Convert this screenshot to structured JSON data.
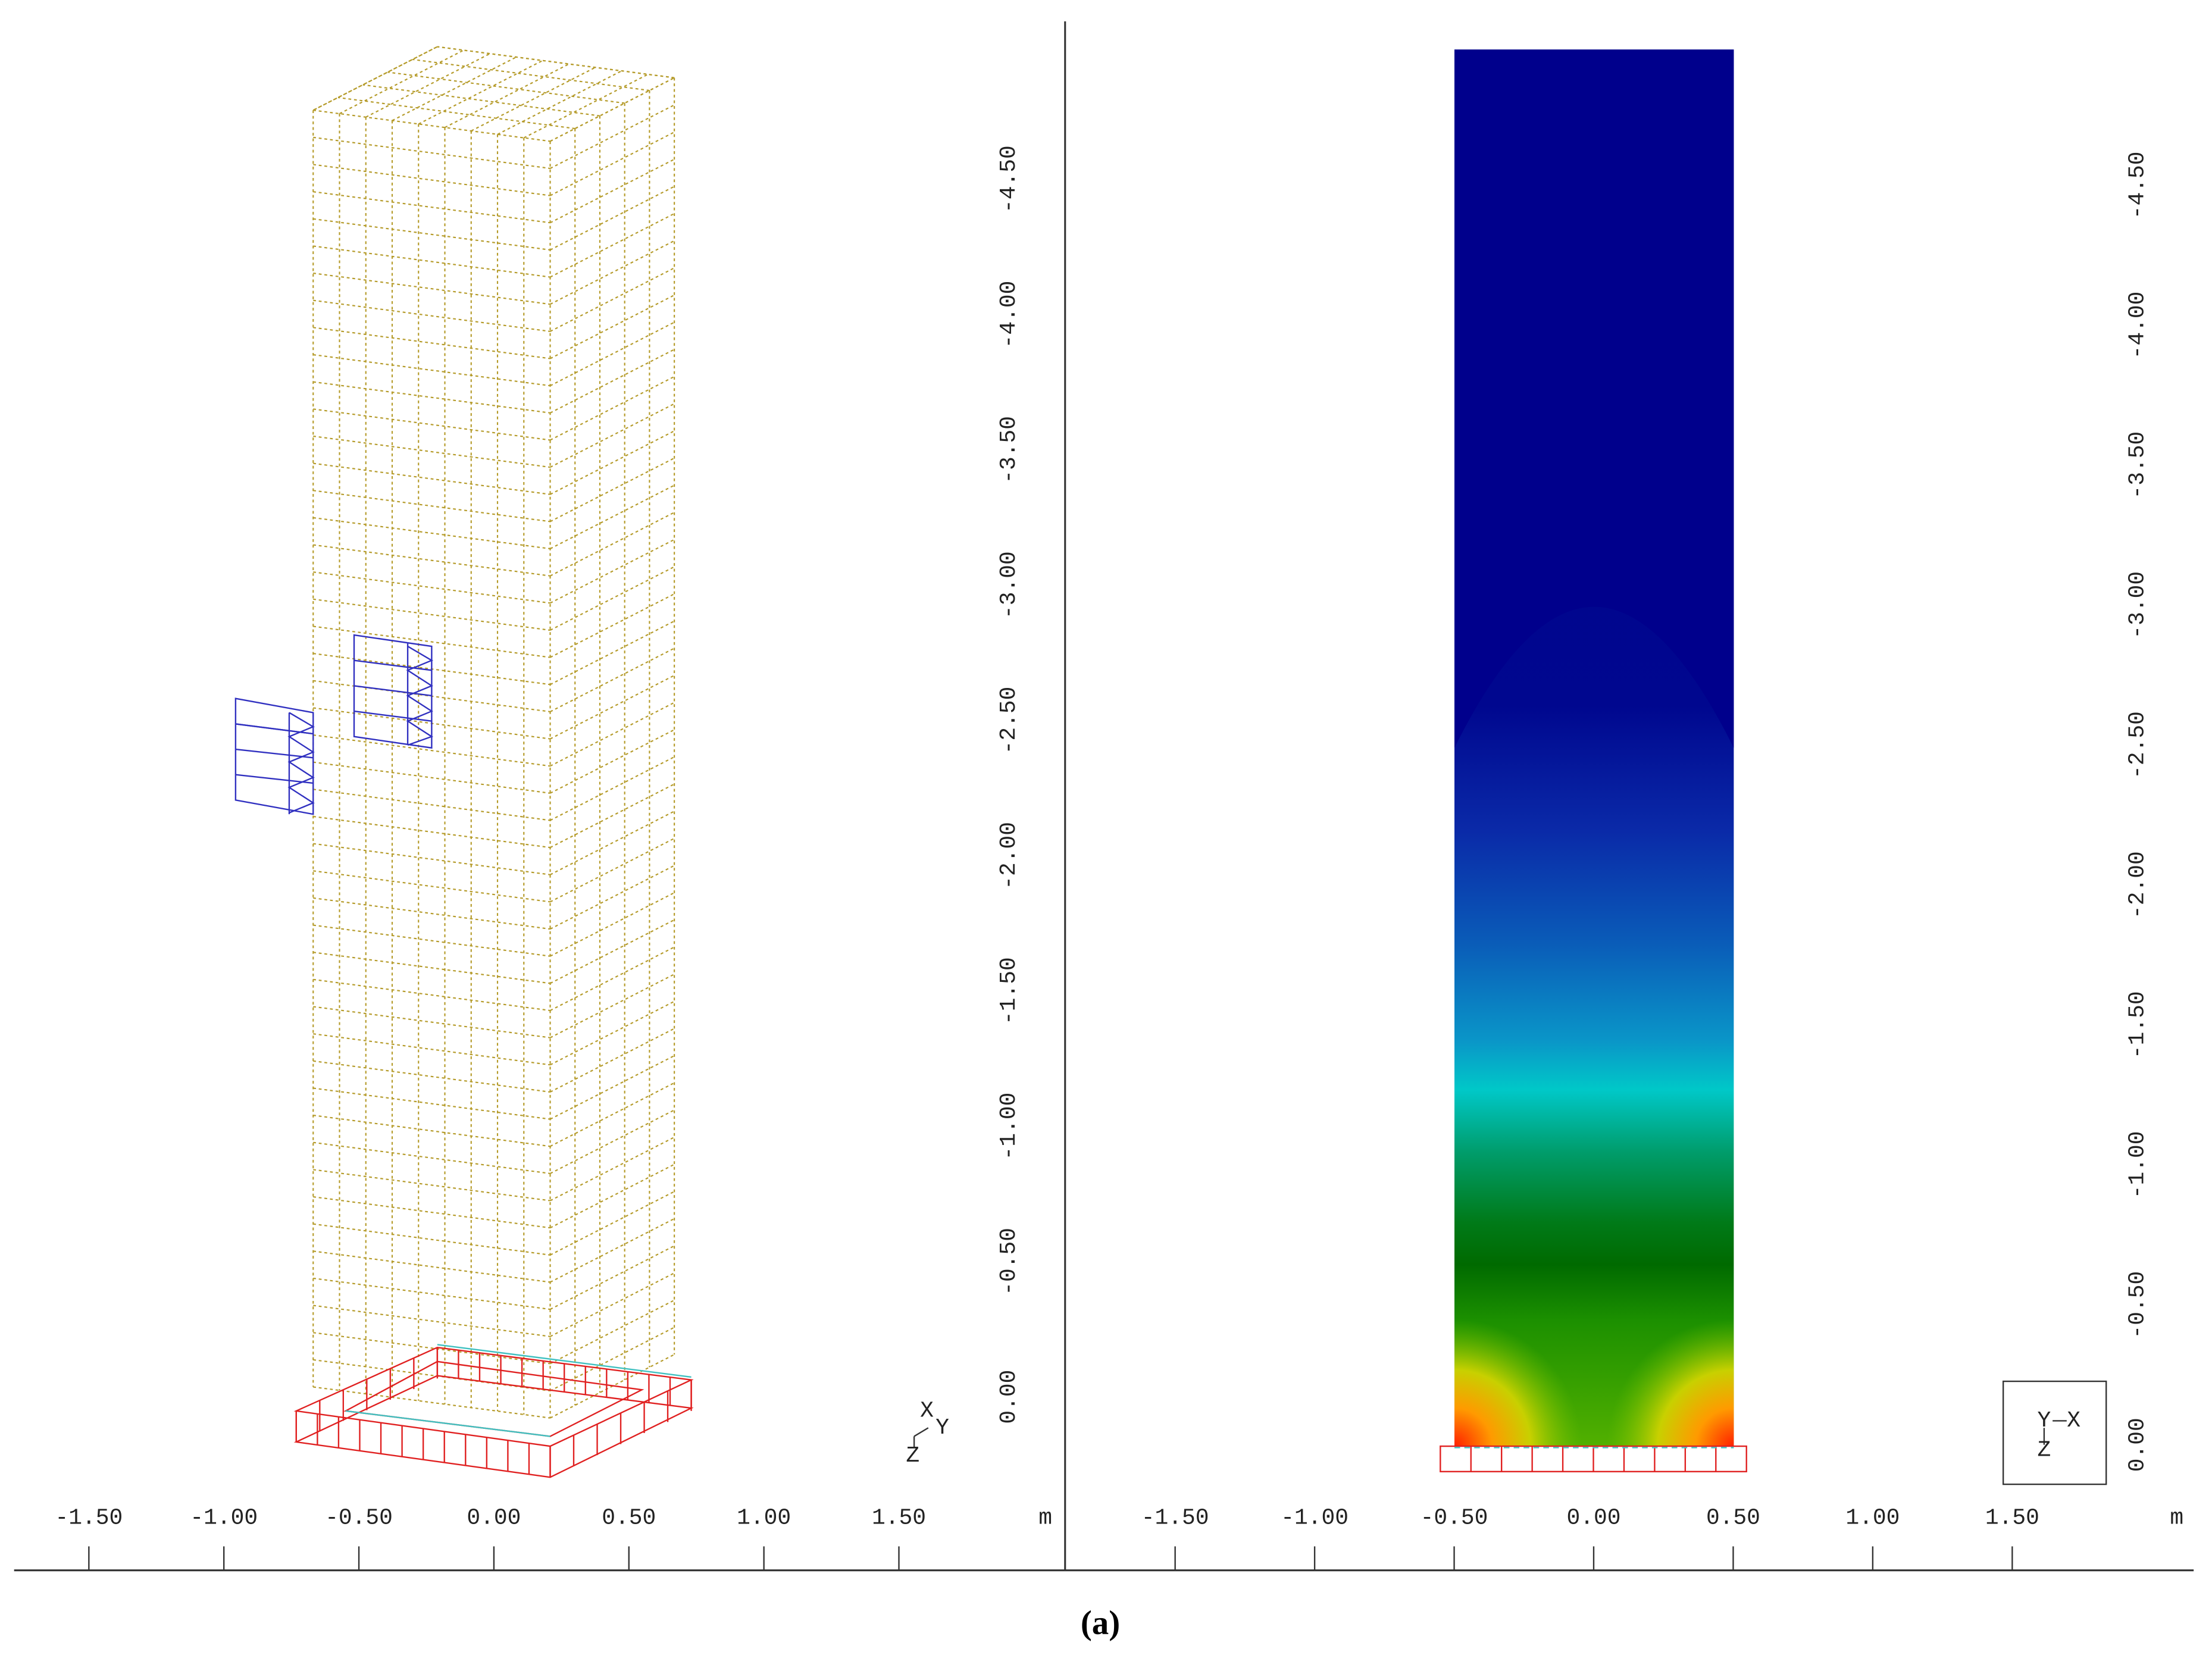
{
  "panels": [
    {
      "x_ticks": [
        "-1.50",
        "-1.00",
        "-0.50",
        "0.00",
        "0.50",
        "1.00",
        "1.50"
      ],
      "x_unit": "m",
      "y_ticks": [
        "0.00",
        "-0.50",
        "-1.00",
        "-1.50",
        "-2.00",
        "-2.50",
        "-3.00",
        "-3.50",
        "-4.00",
        "-4.50"
      ],
      "triad": [
        "X",
        "Y",
        "Z"
      ]
    },
    {
      "x_ticks": [
        "-1.50",
        "-1.00",
        "-0.50",
        "0.00",
        "0.50",
        "1.00",
        "1.50"
      ],
      "x_unit": "m",
      "y_ticks": [
        "0.00",
        "-0.50",
        "-1.00",
        "-1.50",
        "-2.00",
        "-2.50",
        "-3.00",
        "-3.50",
        "-4.00",
        "-4.50"
      ],
      "triad": [
        "Y",
        "X",
        "Z"
      ]
    }
  ],
  "caption": "(a)"
}
